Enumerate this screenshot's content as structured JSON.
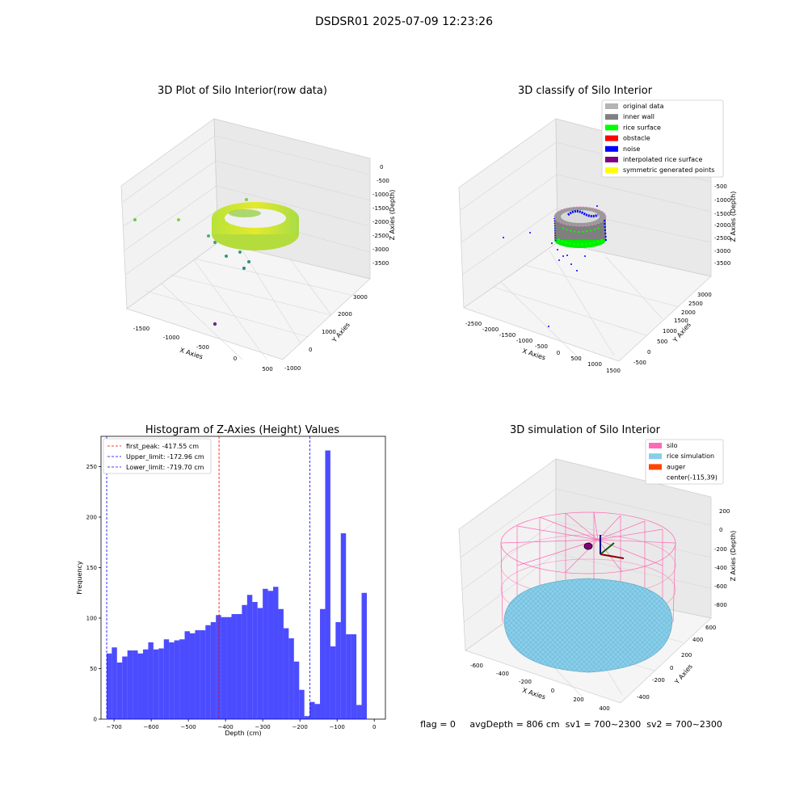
{
  "figure": {
    "suptitle": "DSDSR01 2025-07-09 12:23:26",
    "footer": "flag = 0     avgDepth = 806 cm  sv1 = 700~2300  sv2 = 700~2300"
  },
  "panel_raw": {
    "title": "3D Plot of Silo Interior(row data)",
    "xlabel": "X Axies",
    "ylabel": "Y Axies",
    "zlabel": "Z Axies (Depth)",
    "xticks": [
      "-1500",
      "-1000",
      "-500",
      "0",
      "500"
    ],
    "yticks": [
      "-1000",
      "0",
      "1000",
      "2000",
      "3000"
    ],
    "zticks": [
      "0",
      "-500",
      "-1000",
      "-1500",
      "-2000",
      "-2500",
      "-3000",
      "-3500"
    ]
  },
  "panel_classify": {
    "title": "3D classify of Silo Interior",
    "xlabel": "X Axies",
    "ylabel": "Y Axies",
    "zlabel": "Z Axies (Depth)",
    "xticks": [
      "-2500",
      "-2000",
      "-1500",
      "-1000",
      "-500",
      "0",
      "500",
      "1000",
      "1500"
    ],
    "yticks": [
      "-500",
      "0",
      "500",
      "1000",
      "1500",
      "2000",
      "2500",
      "3000"
    ],
    "zticks": [
      "0",
      "-500",
      "-1000",
      "-1500",
      "-2000",
      "-2500",
      "-3000",
      "-3500"
    ],
    "legend": [
      {
        "label": "original data",
        "color": "#b4b4b4"
      },
      {
        "label": "inner wall",
        "color": "#808080"
      },
      {
        "label": "rice surface",
        "color": "#00ff00"
      },
      {
        "label": "obstacle",
        "color": "#ff0000"
      },
      {
        "label": "noise",
        "color": "#0000ff"
      },
      {
        "label": "interpolated rice surface",
        "color": "#800080"
      },
      {
        "label": "symmetric generated points",
        "color": "#ffff00"
      }
    ]
  },
  "panel_sim": {
    "title": "3D simulation of Silo Interior",
    "xlabel": "X Axies",
    "ylabel": "Y Axies",
    "zlabel": "Z Axies (Depth)",
    "xticks": [
      "-600",
      "-400",
      "-200",
      "0",
      "200",
      "400"
    ],
    "yticks": [
      "-400",
      "-200",
      "0",
      "200",
      "400",
      "600"
    ],
    "zticks": [
      "200",
      "0",
      "-200",
      "-400",
      "-600",
      "-800"
    ],
    "legend": [
      {
        "label": "silo",
        "color": "#ff69b4"
      },
      {
        "label": "rice simulation",
        "color": "#87ceeb"
      },
      {
        "label": "auger",
        "color": "#ff4500"
      },
      {
        "label": "center(-115,39)",
        "color": ""
      }
    ]
  },
  "chart_data": {
    "type": "bar",
    "title": "Histogram of Z-Axies (Height) Values",
    "xlabel": "Depth (cm)",
    "ylabel": "Frequency",
    "xlim": [
      -735,
      30
    ],
    "ylim": [
      0,
      280
    ],
    "xticks": [
      -700,
      -600,
      -500,
      -400,
      -300,
      -200,
      -100,
      0
    ],
    "yticks": [
      0,
      50,
      100,
      150,
      200,
      250
    ],
    "bar_color": "#0000ff",
    "bin_start": -720,
    "bin_width": 14,
    "values": [
      65,
      71,
      56,
      62,
      68,
      68,
      65,
      69,
      76,
      69,
      70,
      79,
      76,
      78,
      79,
      87,
      85,
      88,
      88,
      93,
      96,
      103,
      101,
      101,
      104,
      104,
      113,
      123,
      116,
      110,
      129,
      127,
      131,
      109,
      90,
      80,
      57,
      29,
      3,
      17,
      15,
      109,
      266,
      72,
      96,
      184,
      84,
      84,
      14,
      125
    ],
    "lines": [
      {
        "label": "first_peak: -417.55 cm",
        "x": -417.55,
        "color": "#ff0000"
      },
      {
        "label": "Upper_limit: -172.96 cm",
        "x": -172.96,
        "color": "#0000ff"
      },
      {
        "label": "Lower_limit: -719.70 cm",
        "x": -719.7,
        "color": "#0000ff"
      }
    ]
  }
}
